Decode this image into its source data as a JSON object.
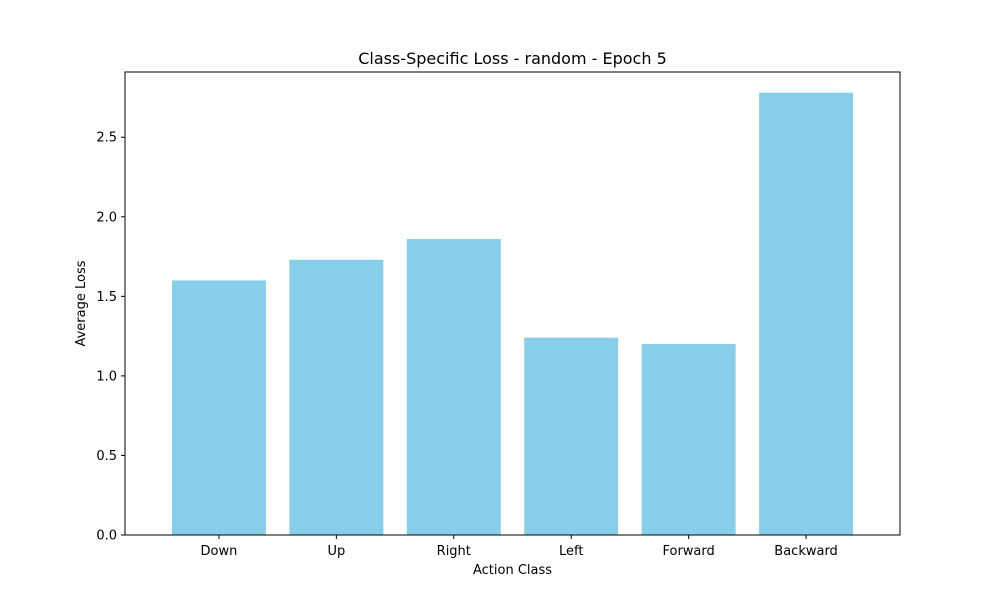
{
  "chart_data": {
    "type": "bar",
    "title": "Class-Specific Loss - random - Epoch 5",
    "xlabel": "Action Class",
    "ylabel": "Average Loss",
    "categories": [
      "Down",
      "Up",
      "Right",
      "Left",
      "Forward",
      "Backward"
    ],
    "values": [
      1.6,
      1.73,
      1.86,
      1.24,
      1.2,
      2.78
    ],
    "ylim": [
      0,
      2.91
    ],
    "yticks": [
      0.0,
      0.5,
      1.0,
      1.5,
      2.0,
      2.5
    ],
    "ytick_labels": [
      "0.0",
      "0.5",
      "1.0",
      "1.5",
      "2.0",
      "2.5"
    ],
    "bar_color": "#87ceeb",
    "grid": false
  }
}
